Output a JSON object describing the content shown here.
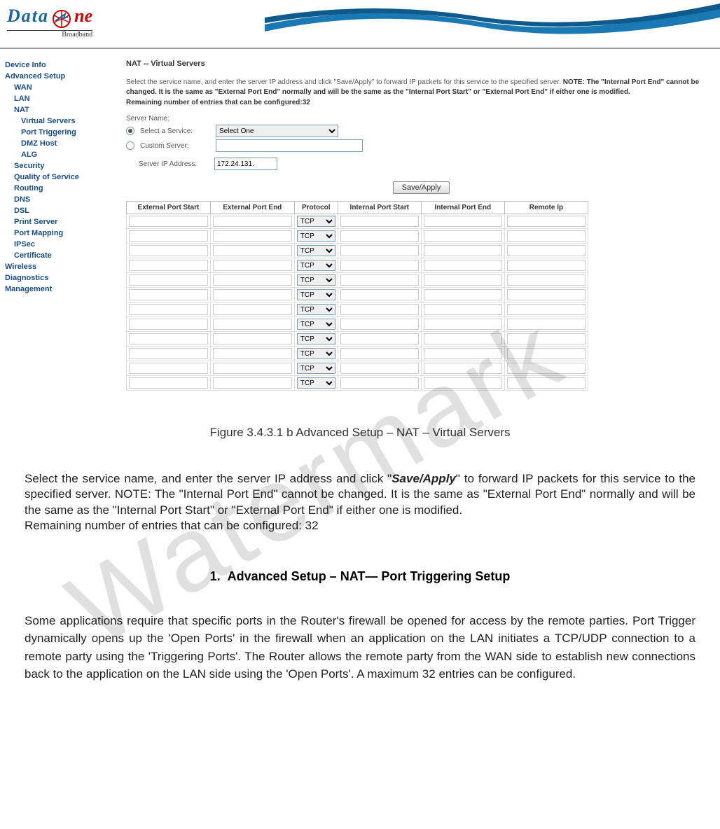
{
  "logo": {
    "part1": "Data",
    "part2": "ne",
    "sub": "Broadband"
  },
  "sidebar": {
    "items": [
      {
        "label": "Device Info",
        "sub": 0
      },
      {
        "label": "Advanced Setup",
        "sub": 0
      },
      {
        "label": "WAN",
        "sub": 1
      },
      {
        "label": "LAN",
        "sub": 1
      },
      {
        "label": "NAT",
        "sub": 1
      },
      {
        "label": "Virtual Servers",
        "sub": 2
      },
      {
        "label": "Port Triggering",
        "sub": 2
      },
      {
        "label": "DMZ Host",
        "sub": 2
      },
      {
        "label": "ALG",
        "sub": 2
      },
      {
        "label": "Security",
        "sub": 1
      },
      {
        "label": "Quality of Service",
        "sub": 1
      },
      {
        "label": "Routing",
        "sub": 1
      },
      {
        "label": "DNS",
        "sub": 1
      },
      {
        "label": "DSL",
        "sub": 1
      },
      {
        "label": "Print Server",
        "sub": 1
      },
      {
        "label": "Port Mapping",
        "sub": 1
      },
      {
        "label": "IPSec",
        "sub": 1
      },
      {
        "label": "Certificate",
        "sub": 1
      },
      {
        "label": "Wireless",
        "sub": 0
      },
      {
        "label": "Diagnostics",
        "sub": 0
      },
      {
        "label": "Management",
        "sub": 0
      }
    ]
  },
  "page": {
    "title": "NAT -- Virtual Servers",
    "help_prefix": "Select the service name, and enter the server IP address and click \"Save/Apply\" to forward IP packets for this service to the specified server. ",
    "help_bold": "NOTE: The \"Internal Port End\" cannot be changed. It is the same as \"External Port End\" normally and will be the same as the \"Internal Port Start\" or \"External Port End\" if either one is modified.",
    "remaining_label": "Remaining number of entries that can be configured:",
    "remaining_value": "32",
    "server_name_label": "Server Name:",
    "select_service_label": "Select a Service:",
    "custom_server_label": "Custom Server:",
    "server_ip_label": "Server IP Address:",
    "server_ip_value": "172.24.131.",
    "select_value": "Select One",
    "button": "Save/Apply",
    "columns": [
      "External Port Start",
      "External Port End",
      "Protocol",
      "Internal Port Start",
      "Internal Port End",
      "Remote Ip"
    ],
    "proto_default": "TCP",
    "row_count": 12
  },
  "doc": {
    "caption": "Figure 3.4.3.1 b Advanced Setup – NAT – Virtual Servers",
    "p1a": "Select the service name, and enter the server IP address and click \"",
    "p1b": "Save/Apply",
    "p1c": "\" to forward IP packets for this service to the specified server. NOTE: The \"Internal Port End\" cannot be changed. It is the same as \"External Port End\" normally and will be the same as the \"Internal Port Start\" or \"External Port End\" if either one is modified.",
    "p1d": "Remaining number of entries that can be configured: 32",
    "heading_num": "1.",
    "heading": "Advanced Setup – NAT— Port Triggering Setup",
    "p2": "Some applications require that specific ports in the Router's firewall be opened for access by the remote parties. Port Trigger dynamically opens up the 'Open Ports' in the firewall when an application on the LAN initiates a TCP/UDP connection to a remote party using the 'Triggering Ports'. The Router allows the remote party from the WAN side to establish new connections back to the application on the LAN side using the 'Open Ports'. A maximum 32 entries can be configured."
  },
  "watermark": "Watermark"
}
